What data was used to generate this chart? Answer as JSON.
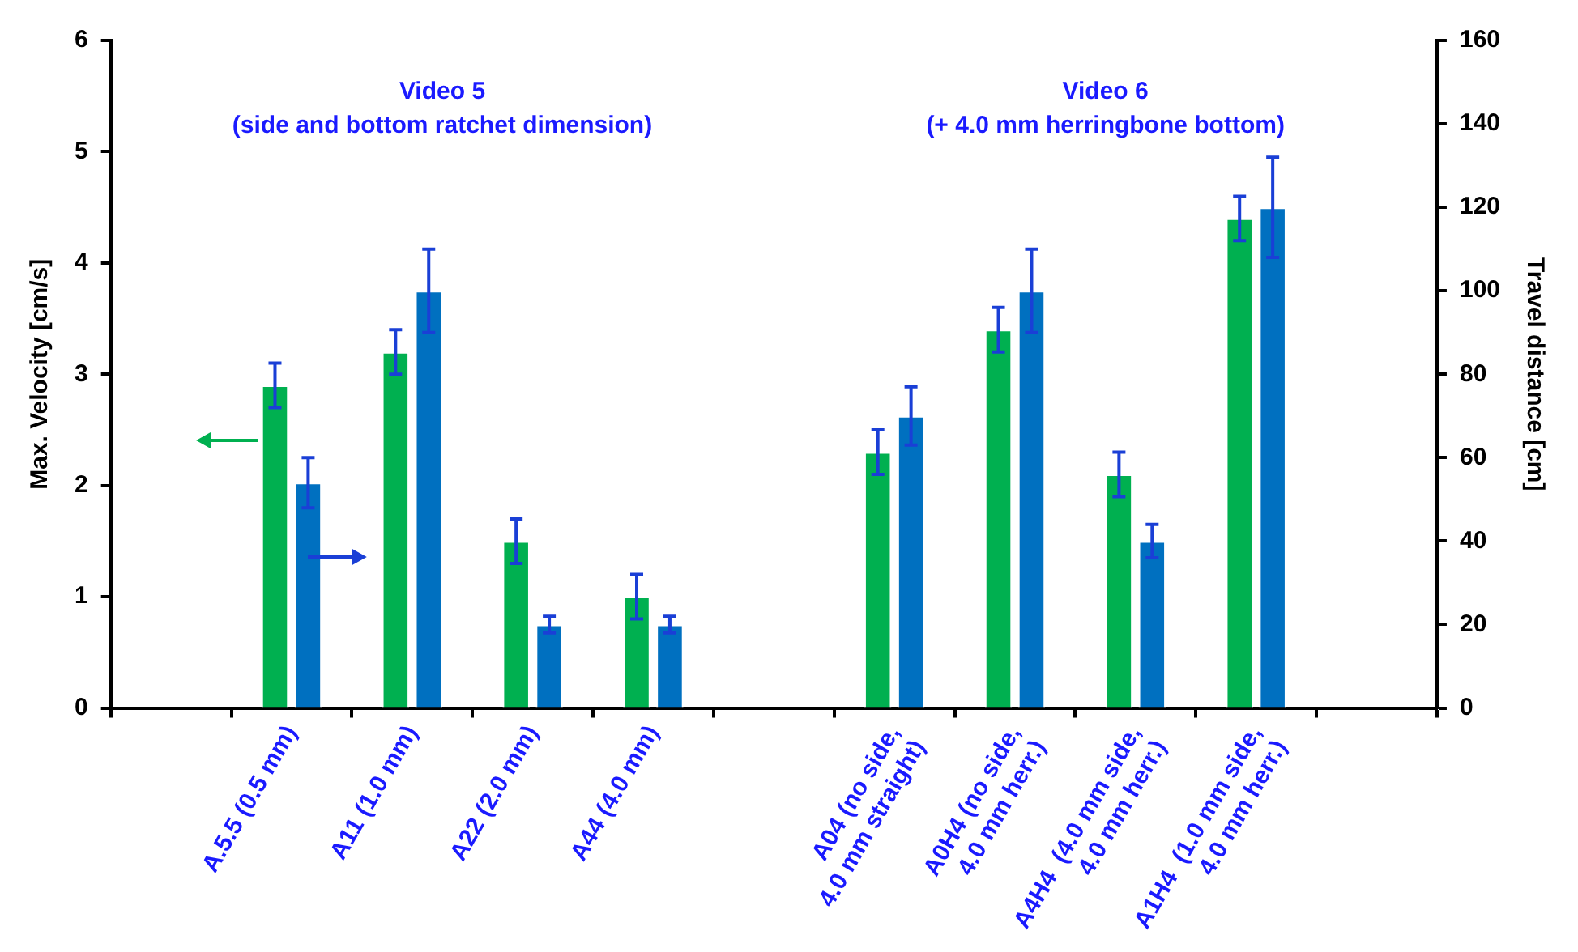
{
  "chart_data": {
    "type": "bar",
    "xlabel": null,
    "ylabel": "Max. Velocity [cm/s]",
    "y2label": "Travel distance [cm]",
    "categories": [
      null,
      "A.5.5 (0.5 mm)",
      "A11 (1.0 mm)",
      "A22 (2.0 mm)",
      "A44 (4.0 mm)",
      null,
      "A04 (no side,\n4.0 mm straight)",
      "A0H4 (no side,\n4.0 mm herr.)",
      "A4H4  (4.0 mm side,\n4.0 mm herr.)",
      "A1H4  (1.0 mm side,\n4.0 mm herr.)",
      null
    ],
    "series": [
      {
        "color": "#00b050",
        "values": [
          null,
          2.9,
          3.2,
          1.5,
          1.0,
          null,
          2.3,
          3.4,
          2.1,
          4.4,
          null
        ],
        "errors": [
          null,
          0.2,
          0.2,
          0.2,
          0.2,
          null,
          0.2,
          0.2,
          0.2,
          0.2,
          null
        ]
      },
      {
        "color": "#0070c0",
        "axis": "y2",
        "values": [
          null,
          54,
          100,
          20,
          20,
          null,
          70,
          100,
          40,
          120,
          null
        ],
        "errors": [
          null,
          6,
          10,
          2,
          2,
          null,
          7,
          10,
          4,
          12,
          null
        ]
      }
    ],
    "ylim": [
      0,
      6
    ],
    "yticks": [
      0,
      1,
      2,
      3,
      4,
      5,
      6
    ],
    "y2lim": [
      0,
      160
    ],
    "y2ticks": [
      0,
      20,
      40,
      60,
      80,
      100,
      120,
      140,
      160
    ],
    "grid": false,
    "legend": false,
    "annotations": [
      "Video 5\n(side and bottom ratchet dimension)",
      "Video 6\n(+ 4.0 mm herringbone bottom)"
    ]
  }
}
